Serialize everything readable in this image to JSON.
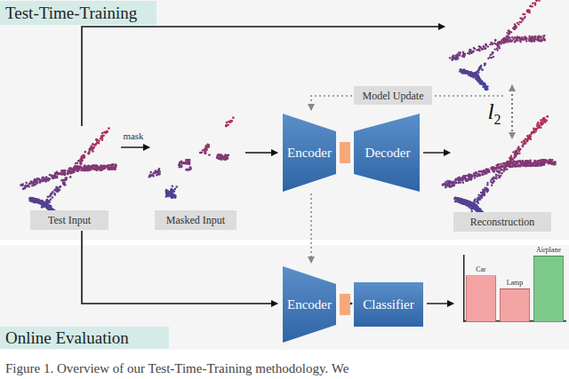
{
  "sections": [
    {
      "title": "Test-Time-Training"
    },
    {
      "title": "Online Evaluation"
    }
  ],
  "labels": {
    "test_input": "Test Input",
    "masked_input": "Masked Input",
    "reconstruction": "Reconstruction",
    "model_update": "Model Update",
    "mask": "mask"
  },
  "loss": {
    "symbol": "l",
    "subscript": "2"
  },
  "top_model": {
    "encoder": "Encoder",
    "decoder": "Decoder"
  },
  "bottom_model": {
    "encoder": "Encoder",
    "classifier": "Classifier"
  },
  "chart_data": {
    "type": "bar",
    "categories": [
      "Car",
      "Lamp",
      "Airplane"
    ],
    "values": [
      0.7,
      0.5,
      1.0
    ],
    "colors": [
      "#f4a3a3",
      "#f4a3a3",
      "#7dc98a"
    ],
    "ylim": [
      0,
      1
    ],
    "tick_labels": false,
    "grid": false
  },
  "caption": "Figure 1. Overview of our Test-Time-Training methodology. We"
}
